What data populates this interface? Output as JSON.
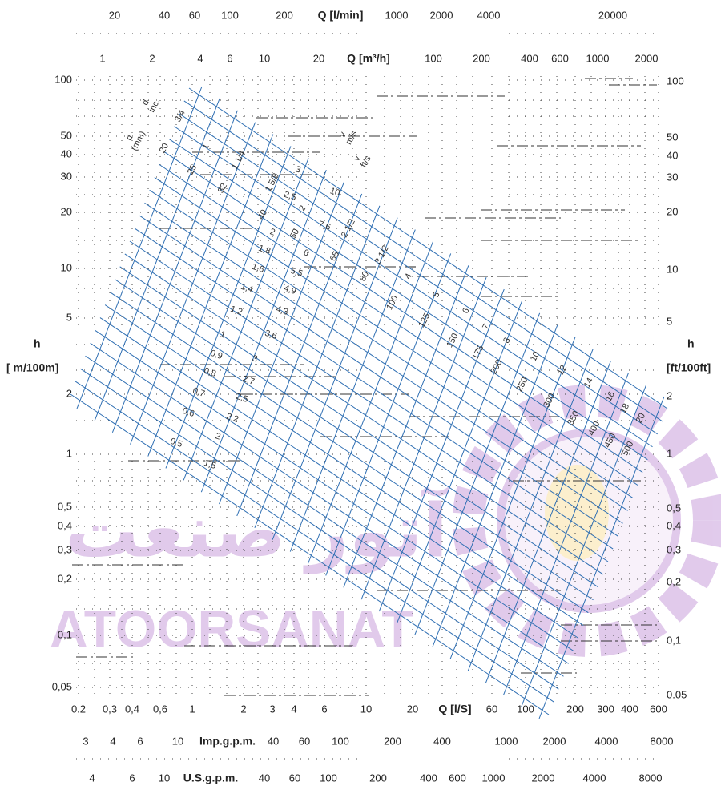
{
  "top_scale_lmin": {
    "title": "Q [l/min]",
    "labels": [
      "20",
      "40",
      "60",
      "100",
      "200",
      "1000",
      "2000",
      "4000",
      "20000"
    ]
  },
  "top_scale_m3h": {
    "title": "Q [m³/h]",
    "labels": [
      "1",
      "2",
      "4",
      "6",
      "10",
      "20",
      "100",
      "200",
      "400",
      "600",
      "1000",
      "2000"
    ]
  },
  "left_scale": {
    "symbol": "h",
    "unit": "[ m/100m]",
    "labels": [
      "100",
      "50",
      "40",
      "30",
      "20",
      "10",
      "5",
      "2",
      "1",
      "0,5",
      "0,4",
      "0,3",
      "0,2",
      "0,1",
      "0,05"
    ]
  },
  "right_scale": {
    "symbol": "h",
    "unit": "[ft/100ft]",
    "labels": [
      "100",
      "50",
      "40",
      "30",
      "20",
      "10",
      "5",
      "2",
      "1",
      "0,5",
      "0,4",
      "0,3",
      "0,2",
      "0,1",
      "0.05"
    ]
  },
  "bottom_scale_ls": {
    "title": "Q [l/S]",
    "labels": [
      "0.2",
      "0,3",
      "0,4",
      "0,6",
      "1",
      "2",
      "3",
      "4",
      "6",
      "10",
      "20",
      "60",
      "100",
      "200",
      "300",
      "400",
      "600"
    ]
  },
  "imp_scale": {
    "title": "Imp.g.p.m.",
    "labels": [
      "3",
      "4",
      "6",
      "10",
      "40",
      "60",
      "100",
      "200",
      "400",
      "1000",
      "2000",
      "4000",
      "8000"
    ]
  },
  "us_scale": {
    "title": "U.S.g.p.m.",
    "labels": [
      "4",
      "6",
      "10",
      "40",
      "60",
      "100",
      "200",
      "400",
      "600",
      "1000",
      "2000",
      "4000",
      "8000"
    ]
  },
  "diameter_mm": {
    "symbol": "d",
    "unit": "(mm)",
    "labels": [
      "20",
      "25",
      "32",
      "40",
      "50",
      "65",
      "80",
      "100",
      "125",
      "150",
      "175",
      "200",
      "250",
      "300",
      "350",
      "400",
      "450",
      "500"
    ]
  },
  "diameter_inch": {
    "symbol": "d",
    "unit": "inc.",
    "labels": [
      "3/4",
      "1",
      "1 1/4",
      "1 5/8",
      "2",
      "2 1/2",
      "3 1/2",
      "4",
      "5",
      "6",
      "7",
      "8",
      "10",
      "12",
      "14",
      "16",
      "18",
      "20"
    ]
  },
  "velocity_ms": {
    "symbol": "v",
    "unit": "m/s",
    "labels": [
      "3",
      "2,5",
      "2",
      "1,8",
      "1,6",
      "1,4",
      "1,2",
      "1",
      "0,9",
      "0,8",
      "0,7",
      "0,6",
      "0,5"
    ]
  },
  "velocity_fts": {
    "symbol": "v",
    "unit": "ft/s",
    "labels": [
      "10",
      "7,6",
      "6",
      "5,5",
      "4,9",
      "4,3",
      "3,6",
      "3",
      "2,7",
      "2,5",
      "2,2",
      "2",
      "1,5"
    ]
  },
  "watermark": {
    "persian": "آتور صنعت",
    "latin": "ATOORSANAT"
  }
}
